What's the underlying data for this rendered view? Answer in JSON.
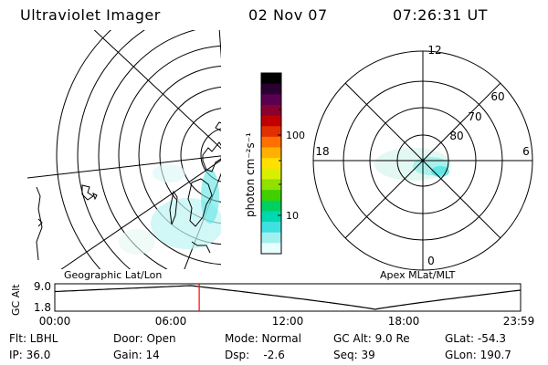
{
  "header": {
    "title": "Ultraviolet Imager",
    "date": "02 Nov 07",
    "time": "07:26:31 UT"
  },
  "maps": {
    "left_label": "Geographic Lat/Lon",
    "right_label": "Apex MLat/MLT",
    "polar_hour_labels": [
      "12",
      "18",
      "6",
      "0"
    ],
    "polar_lat_labels": [
      "60",
      "70",
      "80"
    ]
  },
  "colorbar": {
    "unit_label": "photon cm⁻²s⁻¹",
    "tick_labels": [
      "100",
      "10"
    ],
    "colors": [
      "#000000",
      "#2a0030",
      "#5a0050",
      "#8a0030",
      "#c00000",
      "#e03000",
      "#ff7000",
      "#ffb000",
      "#ffe000",
      "#d8f000",
      "#90e000",
      "#40d000",
      "#00d060",
      "#00d8b0",
      "#40e0e0",
      "#a0f0f0",
      "#e8ffff"
    ]
  },
  "timeline": {
    "y_axis_title": "GC Alt",
    "y_ticks": [
      "9.0",
      "1.8"
    ],
    "x_ticks": [
      "00:00",
      "06:00",
      "12:00",
      "18:00",
      "23:59"
    ],
    "current_time_hours": 7.44,
    "marker_color": "#ff0000"
  },
  "info": {
    "flt": "Flt: LBHL",
    "door": "Door: Open",
    "mode": "Mode: Normal",
    "gc_alt": "GC Alt: 9.0 Re",
    "glat": "GLat: -54.3",
    "ip": "IP: 36.0",
    "gain": "Gain: 14",
    "dsp": "Dsp:    -2.6",
    "seq": "Seq: 39",
    "glon": "GLon: 190.7"
  }
}
